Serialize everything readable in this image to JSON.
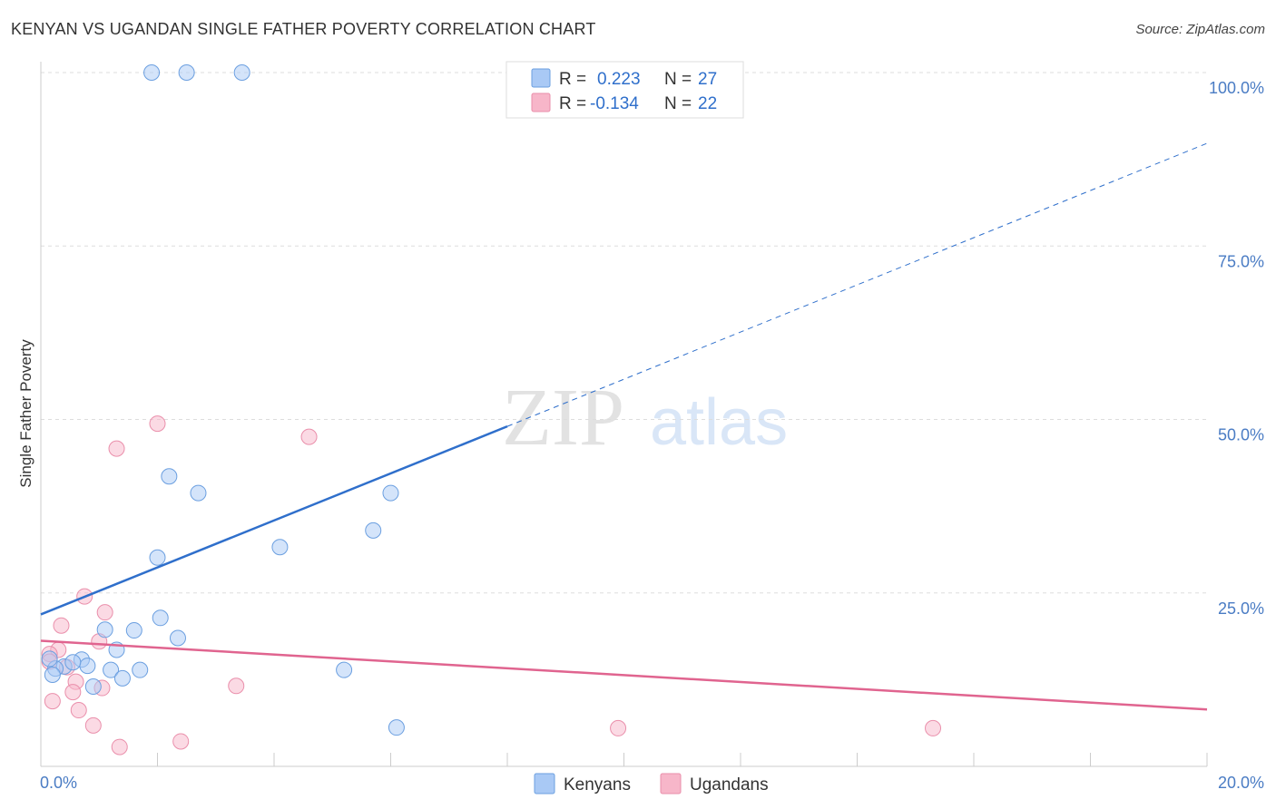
{
  "title": "KENYAN VS UGANDAN SINGLE FATHER POVERTY CORRELATION CHART",
  "source": "Source: ZipAtlas.com",
  "watermark": {
    "zip": "ZIP",
    "atlas": "atlas"
  },
  "colors": {
    "kenyans": "#a9c9f5",
    "kenyans_stroke": "#6b9fe0",
    "kenyans_line": "#2f6fcb",
    "ugandans": "#f7b6c9",
    "ugandans_stroke": "#ea8fab",
    "ugandans_line": "#e0648f",
    "axis_text": "#4a7cc4",
    "grid": "#dddddd"
  },
  "legend": {
    "rows": [
      {
        "r_label": "R =",
        "r_value": "0.223",
        "n_label": "N =",
        "n_value": "27"
      },
      {
        "r_label": "R =",
        "r_value": "-0.134",
        "n_label": "N =",
        "n_value": "22"
      }
    ]
  },
  "chart_data": {
    "type": "scatter",
    "title": "KENYAN VS UGANDAN SINGLE FATHER POVERTY CORRELATION CHART",
    "xlabel": "",
    "ylabel": "Single Father Poverty",
    "xlim": [
      0,
      20
    ],
    "ylim": [
      0,
      100
    ],
    "x_tick_labels": [
      "0.0%",
      "20.0%"
    ],
    "y_ticks": [
      25,
      50,
      75,
      100
    ],
    "y_tick_labels": [
      "25.0%",
      "50.0%",
      "75.0%",
      "100.0%"
    ],
    "grid": true,
    "legend_position": "top-center",
    "series": [
      {
        "name": "Kenyans",
        "points": [
          [
            1.9,
            100
          ],
          [
            2.5,
            100
          ],
          [
            3.45,
            100
          ],
          [
            2.2,
            41.8
          ],
          [
            2.7,
            39.4
          ],
          [
            6.0,
            39.4
          ],
          [
            5.7,
            34
          ],
          [
            4.1,
            31.6
          ],
          [
            2.0,
            30.1
          ],
          [
            2.05,
            21.4
          ],
          [
            1.6,
            19.6
          ],
          [
            2.35,
            18.5
          ],
          [
            1.1,
            19.7
          ],
          [
            1.3,
            16.8
          ],
          [
            0.7,
            15.4
          ],
          [
            0.4,
            14.4
          ],
          [
            0.25,
            14.1
          ],
          [
            0.8,
            14.5
          ],
          [
            0.55,
            15.0
          ],
          [
            1.2,
            13.9
          ],
          [
            1.7,
            13.9
          ],
          [
            0.2,
            13.2
          ],
          [
            1.4,
            12.7
          ],
          [
            0.9,
            11.5
          ],
          [
            5.2,
            13.9
          ],
          [
            6.1,
            5.6
          ],
          [
            0.15,
            15.5
          ]
        ],
        "trend": {
          "x0": 0,
          "y0": 21.9,
          "x1": 8.0,
          "y1": 49.0,
          "dash_x1": 20.0,
          "dash_y1": 89.8
        }
      },
      {
        "name": "Ugandans",
        "points": [
          [
            2.0,
            49.4
          ],
          [
            4.6,
            47.5
          ],
          [
            1.3,
            45.8
          ],
          [
            0.75,
            24.5
          ],
          [
            1.1,
            22.2
          ],
          [
            0.35,
            20.3
          ],
          [
            1.0,
            18.0
          ],
          [
            0.3,
            16.8
          ],
          [
            0.15,
            16.2
          ],
          [
            0.15,
            15.1
          ],
          [
            0.45,
            14.3
          ],
          [
            0.6,
            12.2
          ],
          [
            1.05,
            11.3
          ],
          [
            3.35,
            11.6
          ],
          [
            0.55,
            10.7
          ],
          [
            0.2,
            9.4
          ],
          [
            0.65,
            8.1
          ],
          [
            0.9,
            5.9
          ],
          [
            2.4,
            3.6
          ],
          [
            1.35,
            2.8
          ],
          [
            9.9,
            5.5
          ],
          [
            15.3,
            5.5
          ]
        ],
        "trend": {
          "x0": 0,
          "y0": 18.1,
          "x1": 20.0,
          "y1": 8.2
        }
      }
    ]
  },
  "bottom_legend": [
    "Kenyans",
    "Ugandans"
  ]
}
